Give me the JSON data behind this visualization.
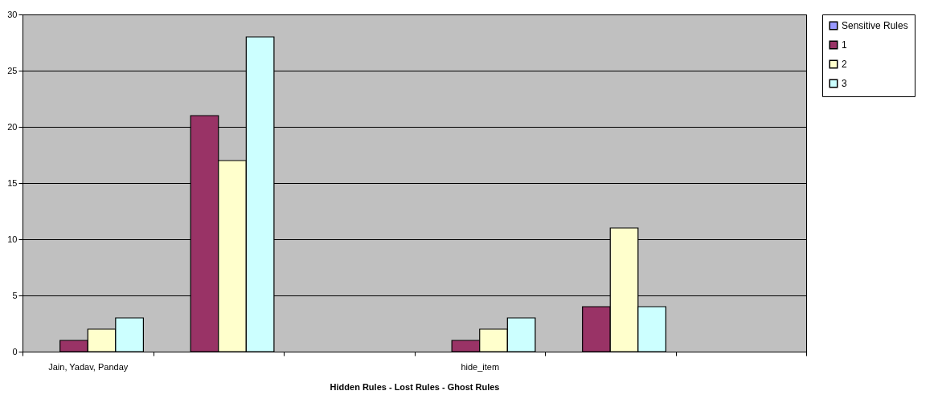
{
  "chart_data": {
    "type": "bar",
    "xlabel": "Hidden Rules - Lost Rules - Ghost Rules",
    "categories": [
      "Jain, Yadav, Panday",
      null,
      null,
      "hide_item",
      null,
      null
    ],
    "series": [
      {
        "name": "Sensitive Rules",
        "color": "#9999ff",
        "values": [
          null,
          null,
          null,
          null,
          null,
          null
        ]
      },
      {
        "name": "1",
        "color": "#993366",
        "values": [
          1,
          21,
          null,
          1,
          4,
          null
        ]
      },
      {
        "name": "2",
        "color": "#ffffcc",
        "values": [
          2,
          17,
          null,
          2,
          11,
          null
        ]
      },
      {
        "name": "3",
        "color": "#ccffff",
        "values": [
          3,
          28,
          null,
          3,
          4,
          null
        ]
      }
    ],
    "ylim": [
      0,
      30
    ],
    "yticks": [
      0,
      5,
      10,
      15,
      20,
      25,
      30
    ],
    "grid": "y",
    "legend": "right"
  }
}
